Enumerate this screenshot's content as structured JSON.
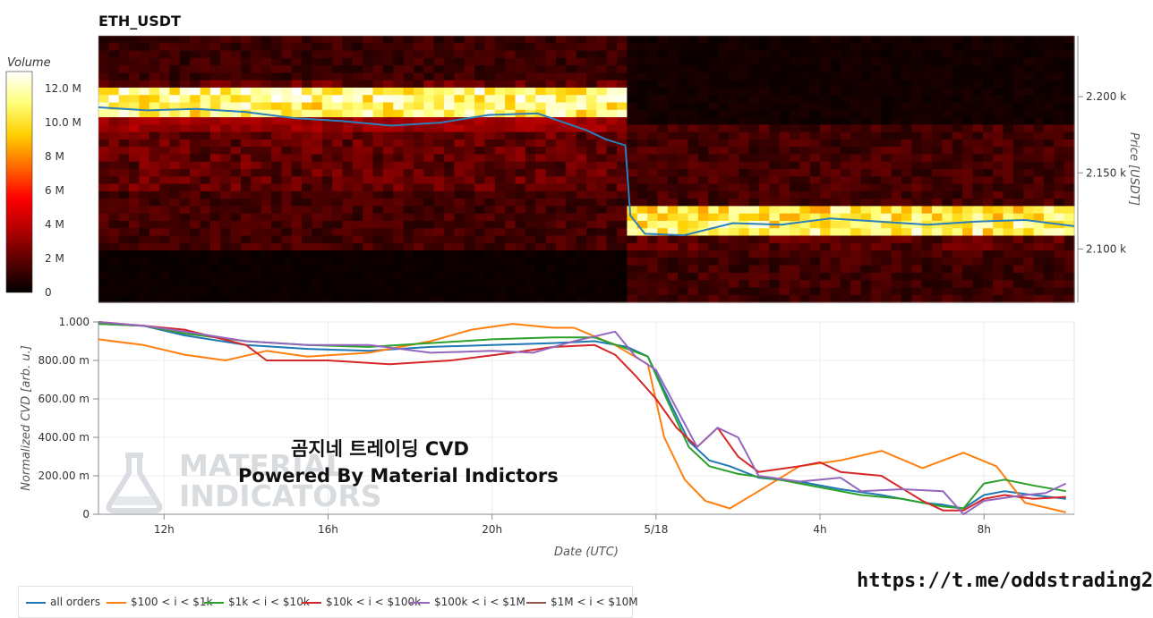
{
  "title": "ETH_USDT",
  "colorbar": {
    "label": "Volume",
    "ticks": [
      "0",
      "2 M",
      "4 M",
      "6 M",
      "8 M",
      "10.0 M",
      "12.0 M"
    ],
    "values": [
      0,
      2,
      4,
      6,
      8,
      10,
      12
    ],
    "max": 13
  },
  "watermark": {
    "line1": "MATERIAL",
    "line2": "INDICATORS"
  },
  "overlay": {
    "line1": "곰지네 트레이딩 CVD",
    "line2": "Powered By Material Indictors"
  },
  "telegram": "https://t.me/oddstrading2",
  "chart_data": [
    {
      "type": "heatmap",
      "title": "ETH_USDT",
      "ylabel": "Price [USDT]",
      "yticks": [
        "2.100 k",
        "2.150 k",
        "2.200 k"
      ],
      "ytick_values": [
        2100,
        2150,
        2200
      ],
      "ylim": [
        2065,
        2240
      ],
      "x_span_hours": [
        10.6,
        10.6
      ],
      "colormap": [
        "#000000",
        "#5a0000",
        "#b30000",
        "#ff0000",
        "#ff6a00",
        "#ffd000",
        "#ffff7a",
        "#ffffff"
      ],
      "bands": [
        {
          "from": 0.0,
          "to": 0.54,
          "price": 2203,
          "volume": 12.0
        },
        {
          "from": 0.0,
          "to": 0.54,
          "price": 2193,
          "volume": 11.5
        },
        {
          "from": 0.0,
          "to": 0.54,
          "price": 2183,
          "volume": 3.5
        },
        {
          "from": 0.54,
          "to": 1.0,
          "price": 2125,
          "volume": 11.0
        },
        {
          "from": 0.54,
          "to": 1.0,
          "price": 2115,
          "volume": 11.5
        }
      ],
      "price_line": {
        "name": "price",
        "color": "#2c7fb8",
        "x": [
          0,
          0.05,
          0.1,
          0.15,
          0.2,
          0.25,
          0.3,
          0.35,
          0.4,
          0.45,
          0.5,
          0.52,
          0.54,
          0.545,
          0.56,
          0.6,
          0.65,
          0.7,
          0.75,
          0.8,
          0.85,
          0.9,
          0.95,
          1.0
        ],
        "y": [
          2193,
          2191,
          2192,
          2190,
          2186,
          2184,
          2181,
          2183,
          2188,
          2189,
          2178,
          2172,
          2168,
          2122,
          2110,
          2109,
          2117,
          2116,
          2120,
          2118,
          2116,
          2118,
          2119,
          2115
        ]
      }
    },
    {
      "type": "line",
      "xlabel": "Date (UTC)",
      "ylabel": "Normalized CVD [arb. u.]",
      "ylim": [
        0,
        1.0
      ],
      "yticks": [
        "0",
        "200.00 m",
        "400.00 m",
        "600.00 m",
        "800.00 m",
        "1.000"
      ],
      "ytick_values": [
        0,
        0.2,
        0.4,
        0.6,
        0.8,
        1.0
      ],
      "xticks": [
        "12h",
        "16h",
        "20h",
        "5/18",
        "4h",
        "8h"
      ],
      "xtick_hours": [
        12,
        16,
        20,
        24,
        28,
        32
      ],
      "xlim_hours": [
        10.4,
        34.2
      ],
      "legend_position": "bottom",
      "series": [
        {
          "name": "all orders",
          "color": "#1f77b4",
          "x": [
            10.4,
            11.5,
            12.5,
            14.0,
            15.5,
            17.0,
            18.5,
            20.0,
            21.5,
            22.5,
            23.3,
            23.8,
            24.3,
            24.8,
            25.3,
            25.8,
            26.5,
            27.5,
            28.5,
            29.5,
            30.5,
            31.0,
            31.5,
            32.0,
            32.5,
            33.2,
            34.0
          ],
          "y": [
            0.99,
            0.98,
            0.93,
            0.88,
            0.86,
            0.85,
            0.87,
            0.88,
            0.89,
            0.9,
            0.87,
            0.82,
            0.6,
            0.38,
            0.28,
            0.25,
            0.19,
            0.17,
            0.13,
            0.1,
            0.06,
            0.05,
            0.03,
            0.1,
            0.12,
            0.1,
            0.08
          ]
        },
        {
          "name": "$100 < i < $1k",
          "color": "#ff7f0e",
          "x": [
            10.4,
            11.5,
            12.5,
            13.5,
            14.5,
            15.5,
            17.0,
            18.5,
            19.5,
            20.5,
            21.5,
            22.0,
            23.0,
            23.8,
            24.2,
            24.7,
            25.2,
            25.8,
            26.5,
            27.5,
            28.5,
            29.5,
            30.5,
            31.5,
            32.3,
            33.0,
            34.0
          ],
          "y": [
            0.91,
            0.88,
            0.83,
            0.8,
            0.85,
            0.82,
            0.84,
            0.9,
            0.96,
            0.99,
            0.97,
            0.97,
            0.88,
            0.78,
            0.4,
            0.18,
            0.07,
            0.03,
            0.12,
            0.25,
            0.28,
            0.33,
            0.24,
            0.32,
            0.25,
            0.06,
            0.01
          ]
        },
        {
          "name": "$1k < i < $10k",
          "color": "#2ca02c",
          "x": [
            10.4,
            11.5,
            12.5,
            14.0,
            15.5,
            17.0,
            18.5,
            20.0,
            21.5,
            22.5,
            23.3,
            23.8,
            24.3,
            24.8,
            25.3,
            26.0,
            27.0,
            28.0,
            29.0,
            30.0,
            31.0,
            31.5,
            32.0,
            32.5,
            33.2,
            34.0
          ],
          "y": [
            0.99,
            0.98,
            0.94,
            0.9,
            0.88,
            0.87,
            0.89,
            0.91,
            0.92,
            0.92,
            0.86,
            0.82,
            0.58,
            0.35,
            0.25,
            0.21,
            0.18,
            0.14,
            0.1,
            0.08,
            0.04,
            0.03,
            0.16,
            0.18,
            0.15,
            0.12
          ]
        },
        {
          "name": "$10k < i < $100k",
          "color": "#d62728",
          "x": [
            10.4,
            11.5,
            12.5,
            14.0,
            14.5,
            16.0,
            17.5,
            19.0,
            20.5,
            21.5,
            22.5,
            23.0,
            23.5,
            24.0,
            24.5,
            25.0,
            25.5,
            26.0,
            26.5,
            27.5,
            28.0,
            28.5,
            29.5,
            30.5,
            31.0,
            31.5,
            32.0,
            32.5,
            33.2,
            34.0
          ],
          "y": [
            1.0,
            0.98,
            0.96,
            0.88,
            0.8,
            0.8,
            0.78,
            0.8,
            0.84,
            0.87,
            0.88,
            0.83,
            0.72,
            0.6,
            0.45,
            0.35,
            0.45,
            0.3,
            0.22,
            0.25,
            0.27,
            0.22,
            0.2,
            0.07,
            0.02,
            0.02,
            0.08,
            0.1,
            0.08,
            0.09
          ]
        },
        {
          "name": "$100k < i < $1M",
          "color": "#9467bd",
          "x": [
            10.4,
            11.5,
            12.5,
            14.0,
            15.5,
            17.0,
            18.5,
            20.0,
            21.0,
            22.0,
            23.0,
            23.5,
            24.0,
            24.5,
            25.0,
            25.5,
            26.0,
            26.5,
            27.5,
            28.5,
            29.0,
            30.0,
            31.0,
            31.5,
            32.0,
            33.0,
            33.5,
            34.0
          ],
          "y": [
            1.0,
            0.98,
            0.95,
            0.9,
            0.88,
            0.88,
            0.84,
            0.85,
            0.84,
            0.9,
            0.95,
            0.82,
            0.75,
            0.55,
            0.35,
            0.45,
            0.4,
            0.2,
            0.17,
            0.19,
            0.12,
            0.13,
            0.12,
            0.0,
            0.07,
            0.1,
            0.11,
            0.16
          ]
        },
        {
          "name": "$1M < i < $10M",
          "color": "#8c564b",
          "x": [],
          "y": []
        }
      ]
    }
  ]
}
